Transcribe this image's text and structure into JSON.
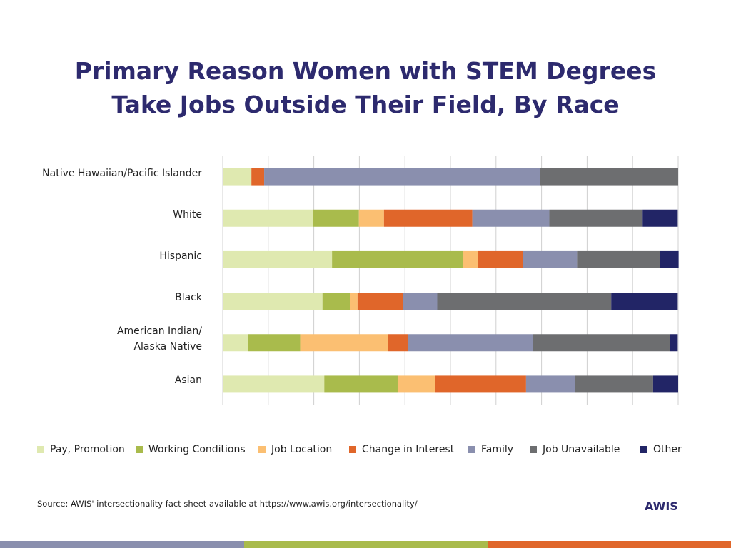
{
  "chart_data": {
    "type": "stacked-bar-horizontal",
    "title": "Primary Reason Women with STEM Degrees\nTake Jobs Outside Their Field, By Race",
    "categories": [
      "Native Hawaiian/Pacific Islander",
      "White",
      "Hispanic",
      "Black",
      "American Indian/\nAlaska Native",
      "Asian"
    ],
    "series": [
      {
        "name": "Pay, Promotion",
        "color": "#dfe9b0",
        "values": [
          6.3,
          19.9,
          24,
          21.9,
          5.6,
          22.3
        ]
      },
      {
        "name": "Working Conditions",
        "color": "#a9bb4c",
        "values": [
          0,
          10,
          28.7,
          6,
          11.4,
          16.1
        ]
      },
      {
        "name": "Job Location",
        "color": "#fbbf72",
        "values": [
          0,
          5.5,
          3.3,
          1.7,
          19.3,
          8.3
        ]
      },
      {
        "name": "Change in Interest",
        "color": "#e0662a",
        "values": [
          2.8,
          19.4,
          9.9,
          10,
          4.4,
          19.9
        ]
      },
      {
        "name": "Family",
        "color": "#8a8fae",
        "values": [
          60.5,
          16.9,
          11.9,
          7.5,
          27.4,
          10.7
        ]
      },
      {
        "name": "Job Unavailable",
        "color": "#6d6e70",
        "values": [
          30.4,
          20.5,
          18.2,
          38.2,
          30.1,
          17.2
        ]
      },
      {
        "name": "Other",
        "color": "#222566",
        "values": [
          0,
          7.7,
          4.1,
          14.6,
          1.7,
          5.5
        ]
      }
    ],
    "xlim": [
      0,
      100
    ],
    "xticks": [
      0,
      10,
      20,
      30,
      40,
      50,
      60,
      70,
      80,
      90,
      100
    ],
    "grid": true,
    "legend": "bottom",
    "source": "Source: AWIS' intersectionality fact sheet available at https://www.awis.org/intersectionality/",
    "brand": "AWIS"
  }
}
